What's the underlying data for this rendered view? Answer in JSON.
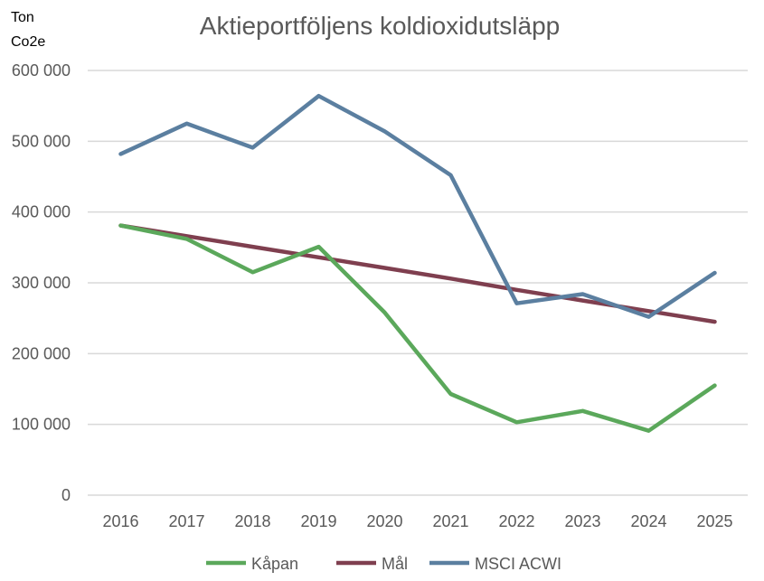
{
  "chart_data": {
    "type": "line",
    "title": "Aktieportföljens koldioxidutsläpp",
    "unit_label": [
      "Ton",
      "Co2e"
    ],
    "xlabel": "",
    "ylabel": "",
    "categories": [
      "2016",
      "2017",
      "2018",
      "2019",
      "2020",
      "2021",
      "2022",
      "2023",
      "2024",
      "2025"
    ],
    "ylim": [
      0,
      600000
    ],
    "yticks": [
      0,
      100000,
      200000,
      300000,
      400000,
      500000,
      600000
    ],
    "ytick_labels": [
      "0",
      "100 000",
      "200 000",
      "300 000",
      "400 000",
      "500 000",
      "600 000"
    ],
    "grid": true,
    "legend_position": "bottom",
    "series": [
      {
        "name": "Kåpan",
        "color": "#5ba85b",
        "values": [
          381000,
          362000,
          315000,
          351000,
          258000,
          143000,
          103000,
          119000,
          91000,
          155000
        ]
      },
      {
        "name": "Mål",
        "color": "#7f3f4f",
        "values": [
          381000,
          366000,
          351000,
          336000,
          321000,
          306000,
          290000,
          275000,
          260000,
          245000
        ]
      },
      {
        "name": "MSCI ACWI",
        "color": "#5b7fa0",
        "values": [
          482000,
          525000,
          491000,
          564000,
          514000,
          452000,
          271000,
          284000,
          252000,
          314000
        ]
      }
    ]
  }
}
